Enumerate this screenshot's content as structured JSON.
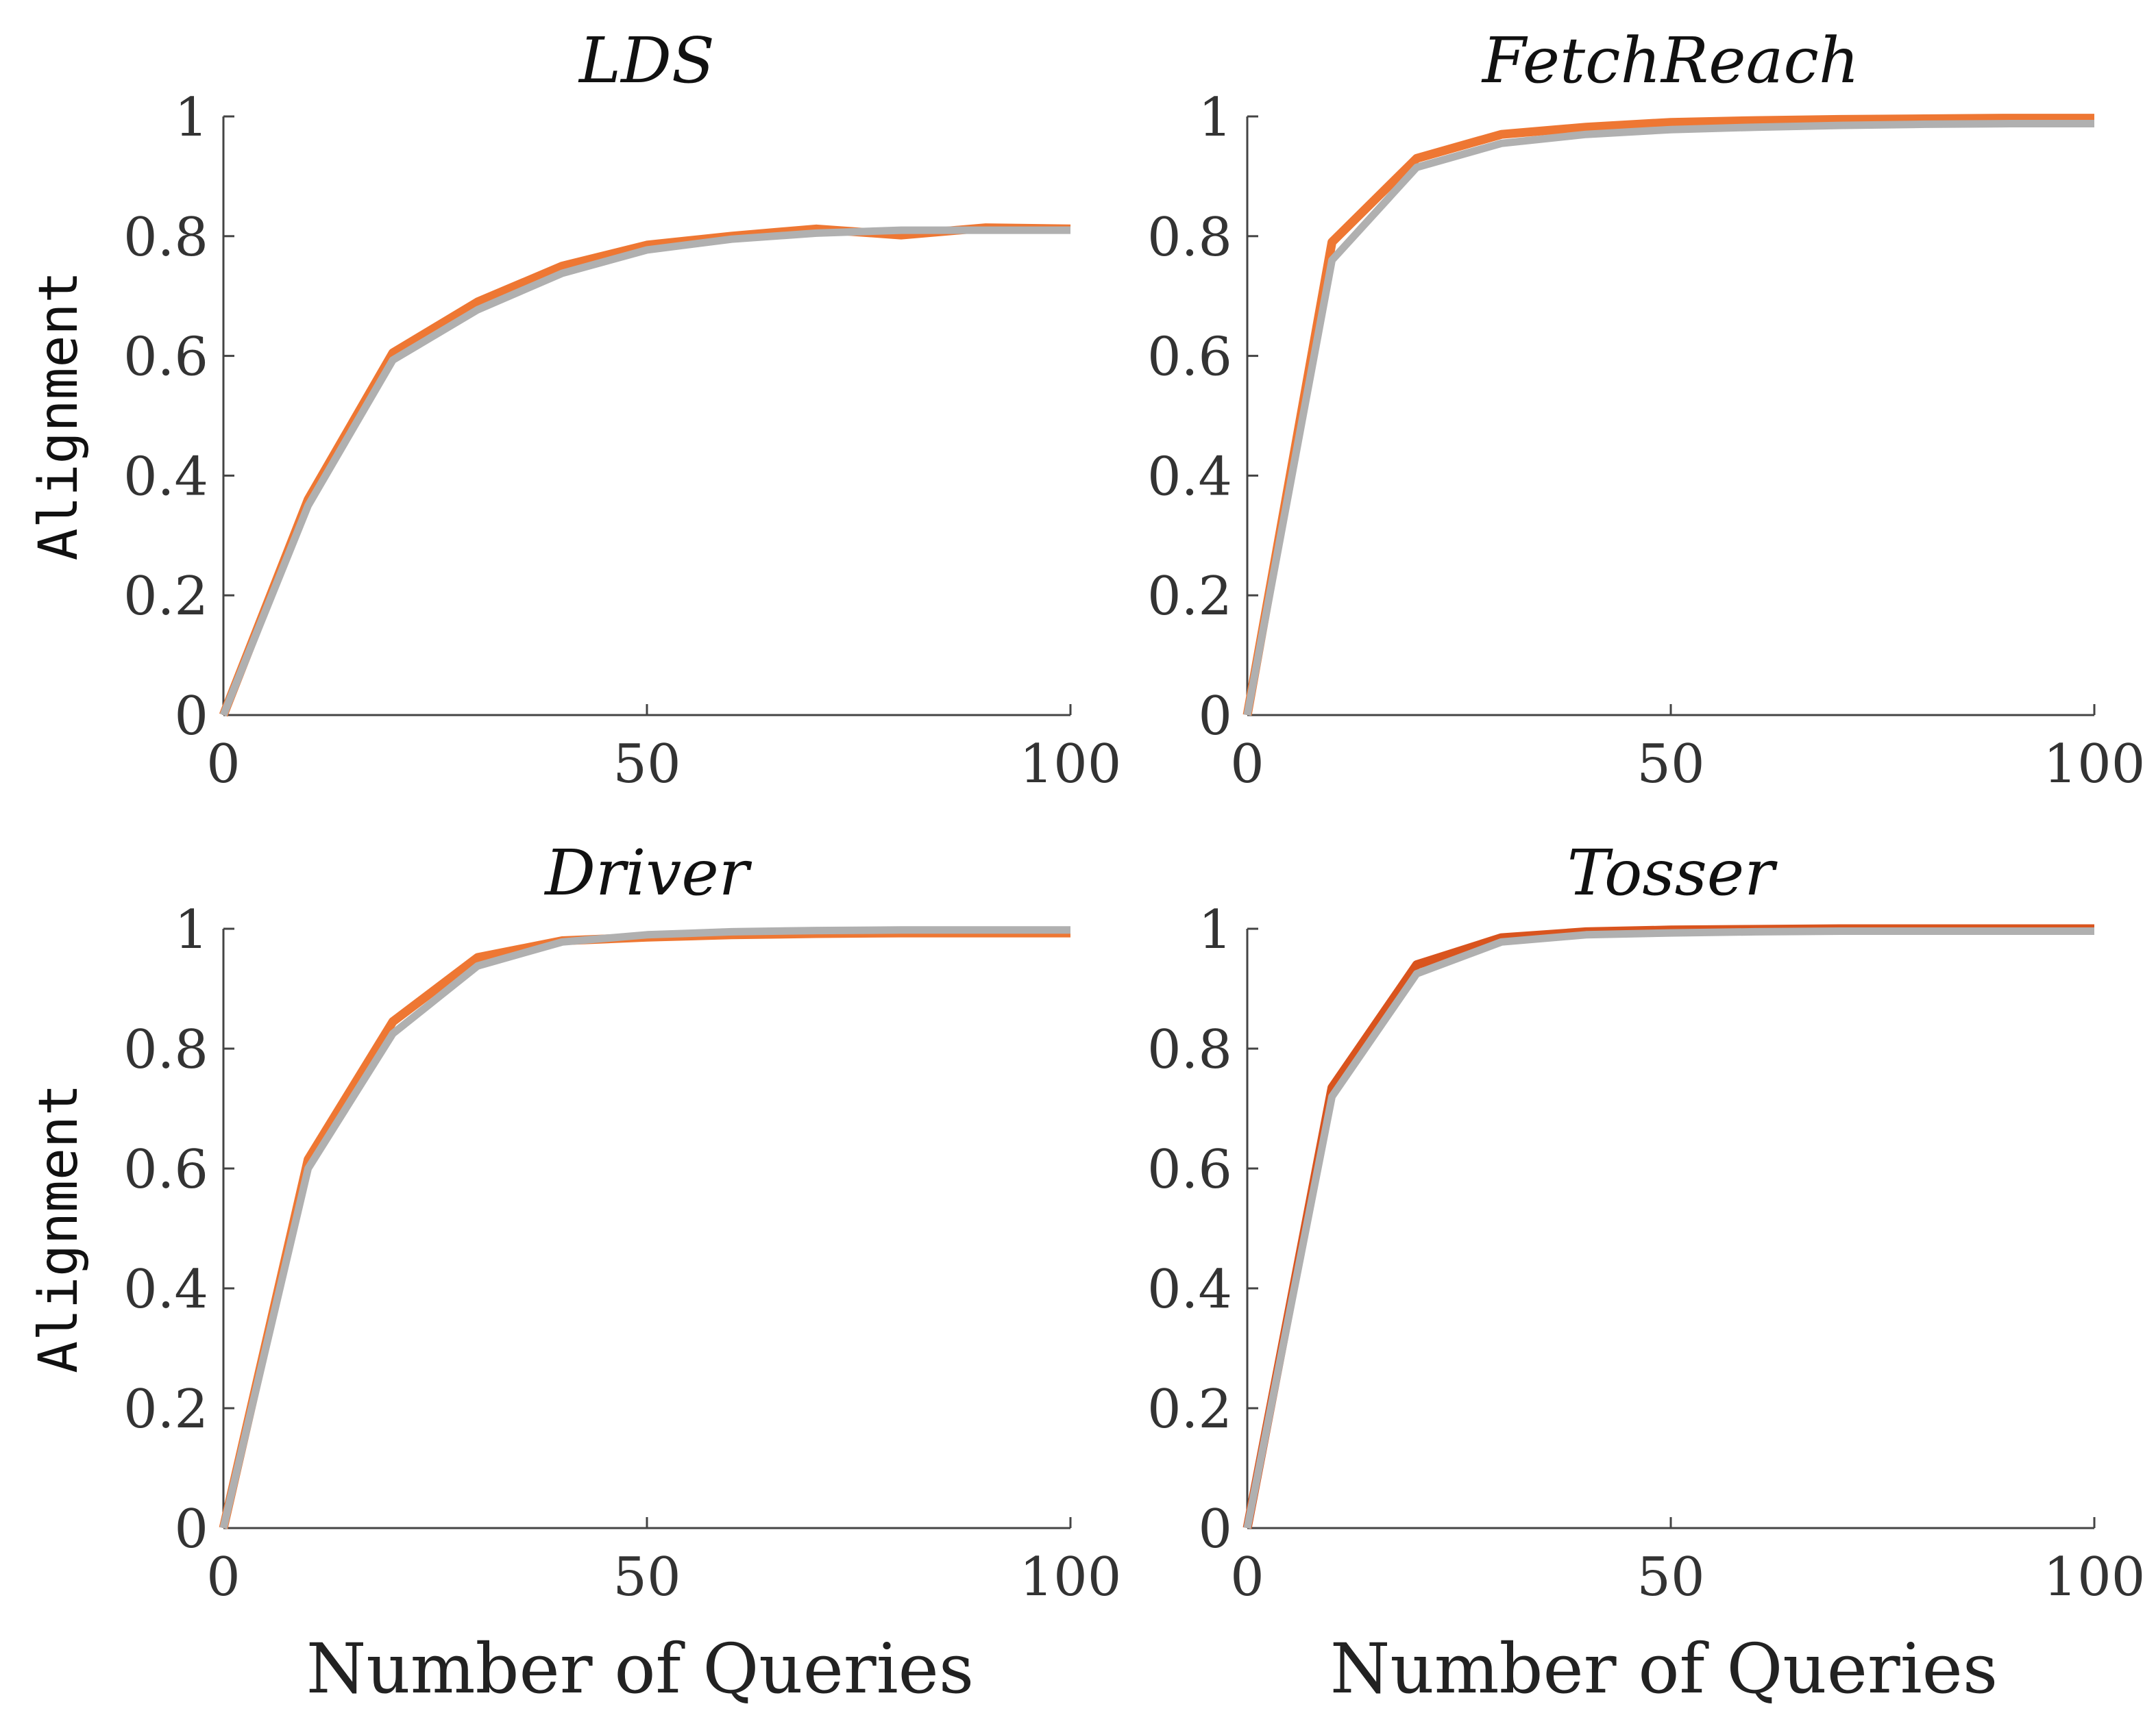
{
  "chart_data": [
    {
      "type": "line",
      "title": "LDS",
      "xlabel": "",
      "ylabel": "Alignment",
      "xlim": [
        0,
        100
      ],
      "ylim": [
        0,
        1
      ],
      "xticks": [
        "0",
        "50",
        "100"
      ],
      "yticks": [
        "0",
        "0.2",
        "0.4",
        "0.6",
        "0.8",
        "1"
      ],
      "grid": false,
      "x": [
        0,
        10,
        20,
        30,
        40,
        50,
        60,
        70,
        80,
        90,
        100
      ],
      "series": [
        {
          "color": "#ee7733",
          "values": [
            0.0,
            0.36,
            0.605,
            0.69,
            0.75,
            0.785,
            0.8,
            0.812,
            0.802,
            0.814,
            0.812
          ]
        },
        {
          "color": "#b0b0b0",
          "values": [
            0.0,
            0.35,
            0.593,
            0.677,
            0.738,
            0.777,
            0.795,
            0.805,
            0.81,
            0.81,
            0.81
          ]
        }
      ]
    },
    {
      "type": "line",
      "title": "FetchReach",
      "xlabel": "",
      "ylabel": "",
      "xlim": [
        0,
        100
      ],
      "ylim": [
        0,
        1
      ],
      "xticks": [
        "0",
        "50",
        "100"
      ],
      "yticks": [
        "0",
        "0.2",
        "0.4",
        "0.6",
        "0.8",
        "1"
      ],
      "grid": false,
      "x": [
        0,
        10,
        20,
        30,
        40,
        50,
        60,
        70,
        80,
        90,
        100
      ],
      "series": [
        {
          "color": "#ee7733",
          "values": [
            0.0,
            0.79,
            0.93,
            0.97,
            0.982,
            0.99,
            0.993,
            0.995,
            0.996,
            0.997,
            0.997
          ]
        },
        {
          "color": "#b0b0b0",
          "values": [
            0.0,
            0.76,
            0.915,
            0.955,
            0.97,
            0.978,
            0.982,
            0.985,
            0.987,
            0.988,
            0.988
          ]
        }
      ]
    },
    {
      "type": "line",
      "title": "Driver",
      "xlabel": "Number of Queries",
      "ylabel": "Alignment",
      "xlim": [
        0,
        100
      ],
      "ylim": [
        0,
        1
      ],
      "xticks": [
        "0",
        "50",
        "100"
      ],
      "yticks": [
        "0",
        "0.2",
        "0.4",
        "0.6",
        "0.8",
        "1"
      ],
      "grid": false,
      "x": [
        0,
        10,
        20,
        30,
        40,
        50,
        60,
        70,
        80,
        90,
        100
      ],
      "series": [
        {
          "color": "#ee7733",
          "values": [
            0.0,
            0.615,
            0.845,
            0.952,
            0.98,
            0.986,
            0.99,
            0.992,
            0.993,
            0.993,
            0.993
          ]
        },
        {
          "color": "#b0b0b0",
          "values": [
            0.0,
            0.6,
            0.825,
            0.938,
            0.978,
            0.99,
            0.995,
            0.997,
            0.998,
            0.998,
            0.998
          ]
        }
      ]
    },
    {
      "type": "line",
      "title": "Tosser",
      "xlabel": "Number of Queries",
      "ylabel": "",
      "xlim": [
        0,
        100
      ],
      "ylim": [
        0,
        1
      ],
      "xticks": [
        "0",
        "50",
        "100"
      ],
      "yticks": [
        "0",
        "0.2",
        "0.4",
        "0.6",
        "0.8",
        "1"
      ],
      "grid": false,
      "x": [
        0,
        10,
        20,
        30,
        40,
        50,
        60,
        70,
        80,
        90,
        100
      ],
      "series": [
        {
          "color": "#d9541e",
          "values": [
            0.0,
            0.735,
            0.94,
            0.985,
            0.995,
            0.998,
            0.999,
            1.0,
            1.0,
            1.0,
            1.0
          ]
        },
        {
          "color": "#b0b0b0",
          "values": [
            0.0,
            0.72,
            0.925,
            0.978,
            0.99,
            0.993,
            0.995,
            0.996,
            0.996,
            0.996,
            0.996
          ]
        }
      ]
    }
  ]
}
